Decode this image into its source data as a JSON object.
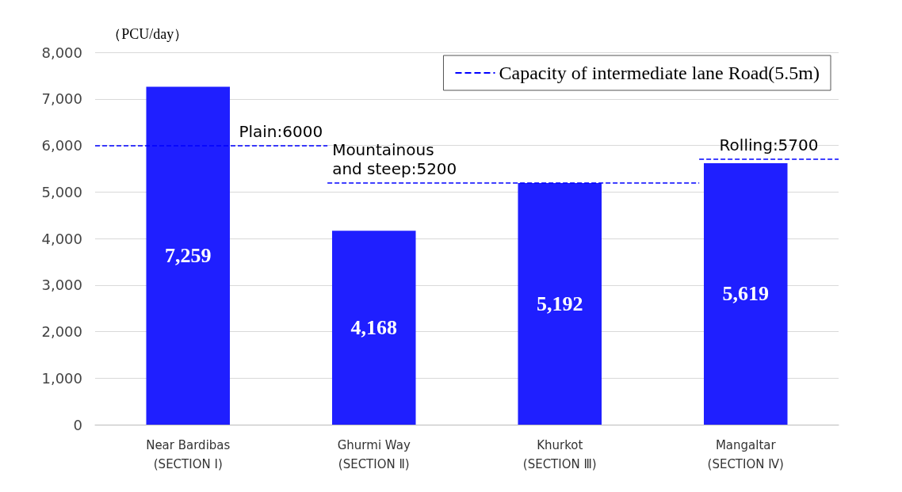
{
  "chart_data": {
    "type": "bar",
    "ylabel": "（PCU/day）",
    "categories": [
      "Near Bardibas\n(SECTION Ⅰ)",
      "Ghurmi Way\n(SECTION Ⅱ)",
      "Khurkot\n(SECTION Ⅲ)",
      "Mangaltar\n(SECTION Ⅳ)"
    ],
    "values": [
      7259,
      4168,
      5192,
      5619
    ],
    "color": "#1f1fff",
    "value_labels": [
      "7,259",
      "4,168",
      "5,192",
      "5,619"
    ],
    "ylim": [
      0,
      8000
    ],
    "yticks": [
      {
        "value": 0,
        "label": "0"
      },
      {
        "value": 1000,
        "label": "1,000"
      },
      {
        "value": 2000,
        "label": "2,000"
      },
      {
        "value": 3000,
        "label": "3,000"
      },
      {
        "value": 4000,
        "label": "4,000"
      },
      {
        "value": 5000,
        "label": "5,000"
      },
      {
        "value": 6000,
        "label": "6,000"
      },
      {
        "value": 7000,
        "label": "7,000"
      },
      {
        "value": 8000,
        "label": "8,000"
      }
    ],
    "grid": "y",
    "legend": "top right",
    "ref_lines": [
      {
        "axis": "y",
        "value": 6000,
        "label": "Plain:6000",
        "color": "#0000ff",
        "line_style": "dashed"
      },
      {
        "axis": "y",
        "value": 5200,
        "label": "Mountainous\nand steep:5200",
        "color": "#0000ff",
        "line_style": "dashed"
      },
      {
        "axis": "y",
        "value": 5700,
        "label": "Rolling:5700",
        "color": "#0000ff",
        "line_style": "dashed"
      }
    ],
    "annotations": [
      "Capacity of intermediate lane Road(5.5m)"
    ]
  }
}
